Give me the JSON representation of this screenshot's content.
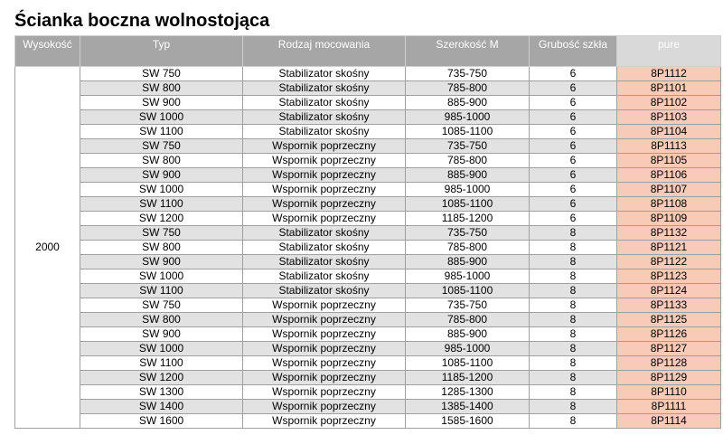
{
  "title": "Ścianka boczna wolnostojąca",
  "headers": [
    "Wysokość",
    "Typ",
    "Rodzaj mocowania",
    "Szerokość M",
    "Grubość szkła",
    "pure"
  ],
  "height": "2000",
  "colors": {
    "header": "#a6a6a6",
    "pure_header": "#d9d9d9",
    "pure_cell": "#f8cbb9",
    "alt_row": "#e2e2e2"
  },
  "rows": [
    [
      "SW 750",
      "Stabilizator skośny",
      "735-750",
      "6",
      "8P1112"
    ],
    [
      "SW 800",
      "Stabilizator skośny",
      "785-800",
      "6",
      "8P1101"
    ],
    [
      "SW 900",
      "Stabilizator skośny",
      "885-900",
      "6",
      "8P1102"
    ],
    [
      "SW 1000",
      "Stabilizator skośny",
      "985-1000",
      "6",
      "8P1103"
    ],
    [
      "SW 1100",
      "Stabilizator skośny",
      "1085-1100",
      "6",
      "8P1104"
    ],
    [
      "SW 750",
      "Wspornik poprzeczny",
      "735-750",
      "6",
      "8P1113"
    ],
    [
      "SW 800",
      "Wspornik poprzeczny",
      "785-800",
      "6",
      "8P1105"
    ],
    [
      "SW 900",
      "Wspornik poprzeczny",
      "885-900",
      "6",
      "8P1106"
    ],
    [
      "SW 1000",
      "Wspornik poprzeczny",
      "985-1000",
      "6",
      "8P1107"
    ],
    [
      "SW 1100",
      "Wspornik poprzeczny",
      "1085-1100",
      "6",
      "8P1108"
    ],
    [
      "SW 1200",
      "Wspornik poprzeczny",
      "1185-1200",
      "6",
      "8P1109"
    ],
    [
      "SW 750",
      "Stabilizator skośny",
      "735-750",
      "8",
      "8P1132"
    ],
    [
      "SW 800",
      "Stabilizator skośny",
      "785-800",
      "8",
      "8P1121"
    ],
    [
      "SW 900",
      "Stabilizator skośny",
      "885-900",
      "8",
      "8P1122"
    ],
    [
      "SW 1000",
      "Stabilizator skośny",
      "985-1000",
      "8",
      "8P1123"
    ],
    [
      "SW 1100",
      "Stabilizator skośny",
      "1085-1100",
      "8",
      "8P1124"
    ],
    [
      "SW 750",
      "Wspornik poprzeczny",
      "735-750",
      "8",
      "8P1133"
    ],
    [
      "SW 800",
      "Wspornik poprzeczny",
      "785-800",
      "8",
      "8P1125"
    ],
    [
      "SW 900",
      "Wspornik poprzeczny",
      "885-900",
      "8",
      "8P1126"
    ],
    [
      "SW 1000",
      "Wspornik poprzeczny",
      "985-1000",
      "8",
      "8P1127"
    ],
    [
      "SW 1100",
      "Wspornik poprzeczny",
      "1085-1100",
      "8",
      "8P1128"
    ],
    [
      "SW 1200",
      "Wspornik poprzeczny",
      "1185-1200",
      "8",
      "8P1129"
    ],
    [
      "SW 1300",
      "Wspornik poprzeczny",
      "1285-1300",
      "8",
      "8P1110"
    ],
    [
      "SW 1400",
      "Wspornik poprzeczny",
      "1385-1400",
      "8",
      "8P1111"
    ],
    [
      "SW 1600",
      "Wspornik poprzeczny",
      "1585-1600",
      "8",
      "8P1114"
    ]
  ]
}
